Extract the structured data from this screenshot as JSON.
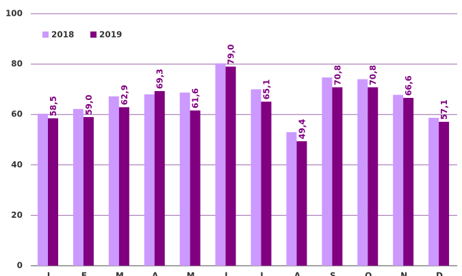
{
  "chart_data": {
    "type": "bar",
    "categories": [
      "J",
      "F",
      "M",
      "A",
      "M",
      "J",
      "J",
      "A",
      "S",
      "O",
      "N",
      "D"
    ],
    "series": [
      {
        "name": "2018",
        "color": "#cc99ff",
        "values": [
          60.3,
          62.2,
          67.2,
          68.0,
          68.7,
          80.3,
          70.0,
          53.0,
          74.7,
          74.0,
          67.8,
          58.7
        ]
      },
      {
        "name": "2019",
        "color": "#800080",
        "values": [
          58.5,
          59.0,
          62.9,
          69.3,
          61.6,
          79.0,
          65.1,
          49.4,
          70.8,
          70.8,
          66.6,
          57.1
        ],
        "value_labels": [
          "58,5",
          "59,0",
          "62,9",
          "69,3",
          "61,6",
          "79,0",
          "65,1",
          "49,4",
          "70,8",
          "70,8",
          "66,6",
          "57,1"
        ]
      }
    ],
    "ylim": [
      0,
      100
    ],
    "yticks": [
      0,
      20,
      40,
      60,
      80,
      100
    ],
    "grid": true,
    "legend": "top-left"
  }
}
